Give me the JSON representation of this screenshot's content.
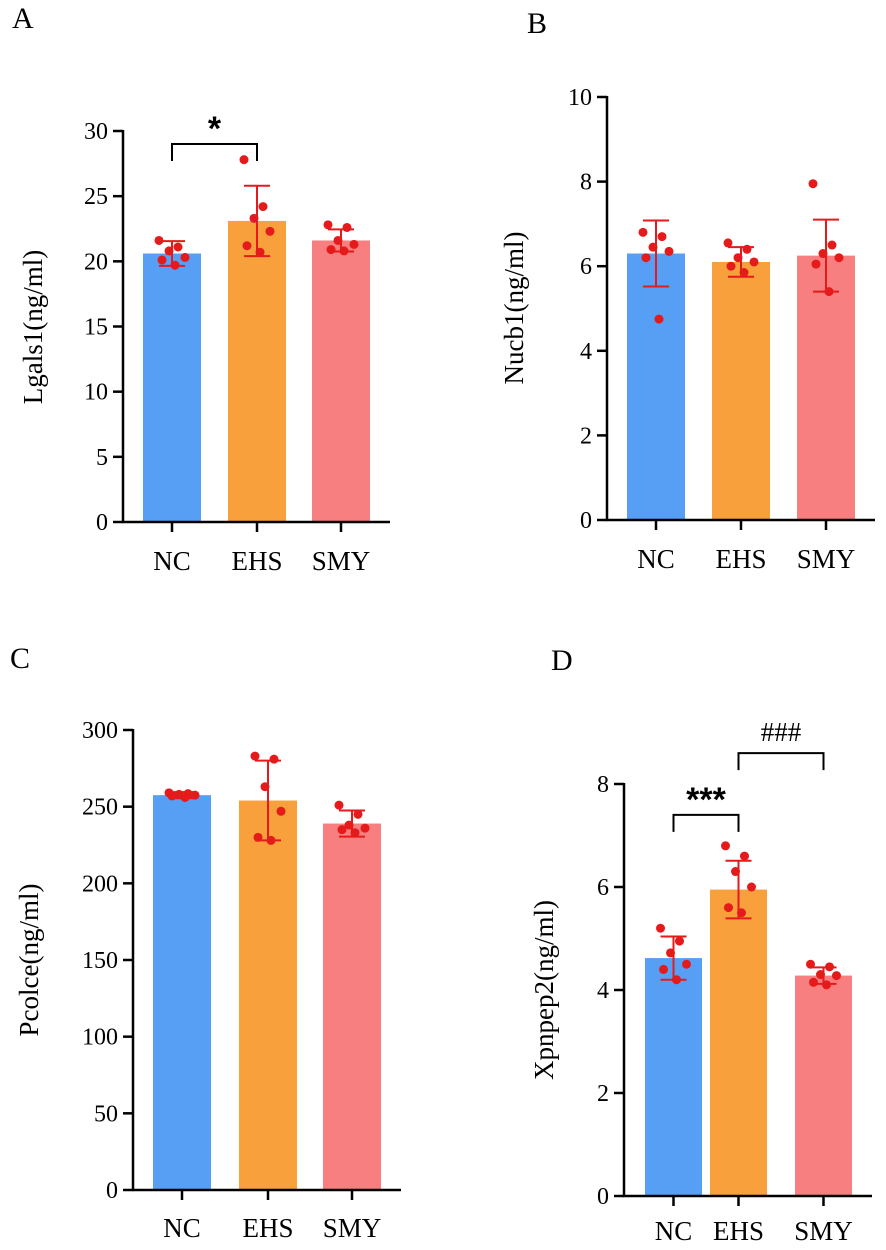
{
  "colors": {
    "NC": "#579ef5",
    "EHS": "#f7a03c",
    "SMY": "#f87f7f",
    "points": "#e51a1a",
    "error_bars": "#e51a1a"
  },
  "chart_data": [
    {
      "panel": "A",
      "type": "bar",
      "ylabel": "Lgals1(ng/ml)",
      "categories": [
        "NC",
        "EHS",
        "SMY"
      ],
      "values": [
        20.6,
        23.1,
        21.6
      ],
      "sd": [
        0.95,
        2.7,
        0.85
      ],
      "points": [
        [
          21.6,
          21.1,
          20.8,
          20.3,
          20.1,
          19.7
        ],
        [
          27.8,
          24.2,
          23.3,
          22.3,
          21.2,
          20.7
        ],
        [
          22.8,
          22.6,
          21.6,
          21.3,
          20.9,
          20.8
        ]
      ],
      "ylim": [
        0,
        30
      ],
      "yticks": [
        0,
        5,
        10,
        15,
        20,
        25,
        30
      ],
      "ytick_labels": [
        "0",
        "5",
        "10",
        "15",
        "20",
        "25",
        "30"
      ],
      "significance": [
        {
          "from": 0,
          "to": 1,
          "label": "*",
          "y": 29.0
        }
      ]
    },
    {
      "panel": "B",
      "type": "bar",
      "ylabel": "Nucb1(ng/ml)",
      "categories": [
        "NC",
        "EHS",
        "SMY"
      ],
      "values": [
        6.3,
        6.1,
        6.25
      ],
      "sd": [
        0.78,
        0.35,
        0.85
      ],
      "points": [
        [
          6.8,
          6.7,
          6.45,
          6.35,
          6.2,
          4.75
        ],
        [
          6.55,
          6.4,
          6.2,
          6.1,
          6.0,
          5.85
        ],
        [
          7.95,
          6.5,
          6.3,
          6.2,
          6.05,
          5.4
        ]
      ],
      "ylim": [
        0,
        10
      ],
      "yticks": [
        0,
        2,
        4,
        6,
        8,
        10
      ],
      "ytick_labels": [
        "0",
        "2",
        "4",
        "6",
        "8",
        "10"
      ],
      "significance": []
    },
    {
      "panel": "C",
      "type": "bar",
      "ylabel": "Pcolce(ng/ml)",
      "categories": [
        "NC",
        "EHS",
        "SMY"
      ],
      "values": [
        257.5,
        254,
        239
      ],
      "sd": [
        2.0,
        26,
        8.5
      ],
      "points": [
        [
          259,
          258.5,
          258,
          257.5,
          257,
          256
        ],
        [
          283,
          281,
          263,
          247,
          230,
          228
        ],
        [
          251,
          245,
          238,
          236,
          235,
          233
        ]
      ],
      "ylim": [
        0,
        300
      ],
      "yticks": [
        0,
        50,
        100,
        150,
        200,
        250,
        300
      ],
      "ytick_labels": [
        "0",
        "50",
        "100",
        "150",
        "200",
        "250",
        "300"
      ],
      "significance": []
    },
    {
      "panel": "D",
      "type": "bar",
      "ylabel": "Xpnpep2(ng/ml)",
      "categories": [
        "NC",
        "EHS",
        "SMY"
      ],
      "values": [
        4.62,
        5.95,
        4.28
      ],
      "sd": [
        0.42,
        0.56,
        0.16
      ],
      "points": [
        [
          5.2,
          4.95,
          4.72,
          4.5,
          4.4,
          4.2
        ],
        [
          6.8,
          6.6,
          6.3,
          6.0,
          5.6,
          5.5
        ],
        [
          4.5,
          4.45,
          4.3,
          4.28,
          4.15,
          4.1
        ]
      ],
      "ylim": [
        0,
        8
      ],
      "yticks": [
        0,
        2,
        4,
        6,
        8
      ],
      "ytick_labels": [
        "0",
        "2",
        "4",
        "6",
        "8"
      ],
      "significance": [
        {
          "from": 0,
          "to": 1,
          "label": "***",
          "y": 7.4,
          "style": "star"
        },
        {
          "from": 1,
          "to": 2,
          "label": "###",
          "y": 8.6,
          "style": "hash"
        }
      ]
    }
  ]
}
